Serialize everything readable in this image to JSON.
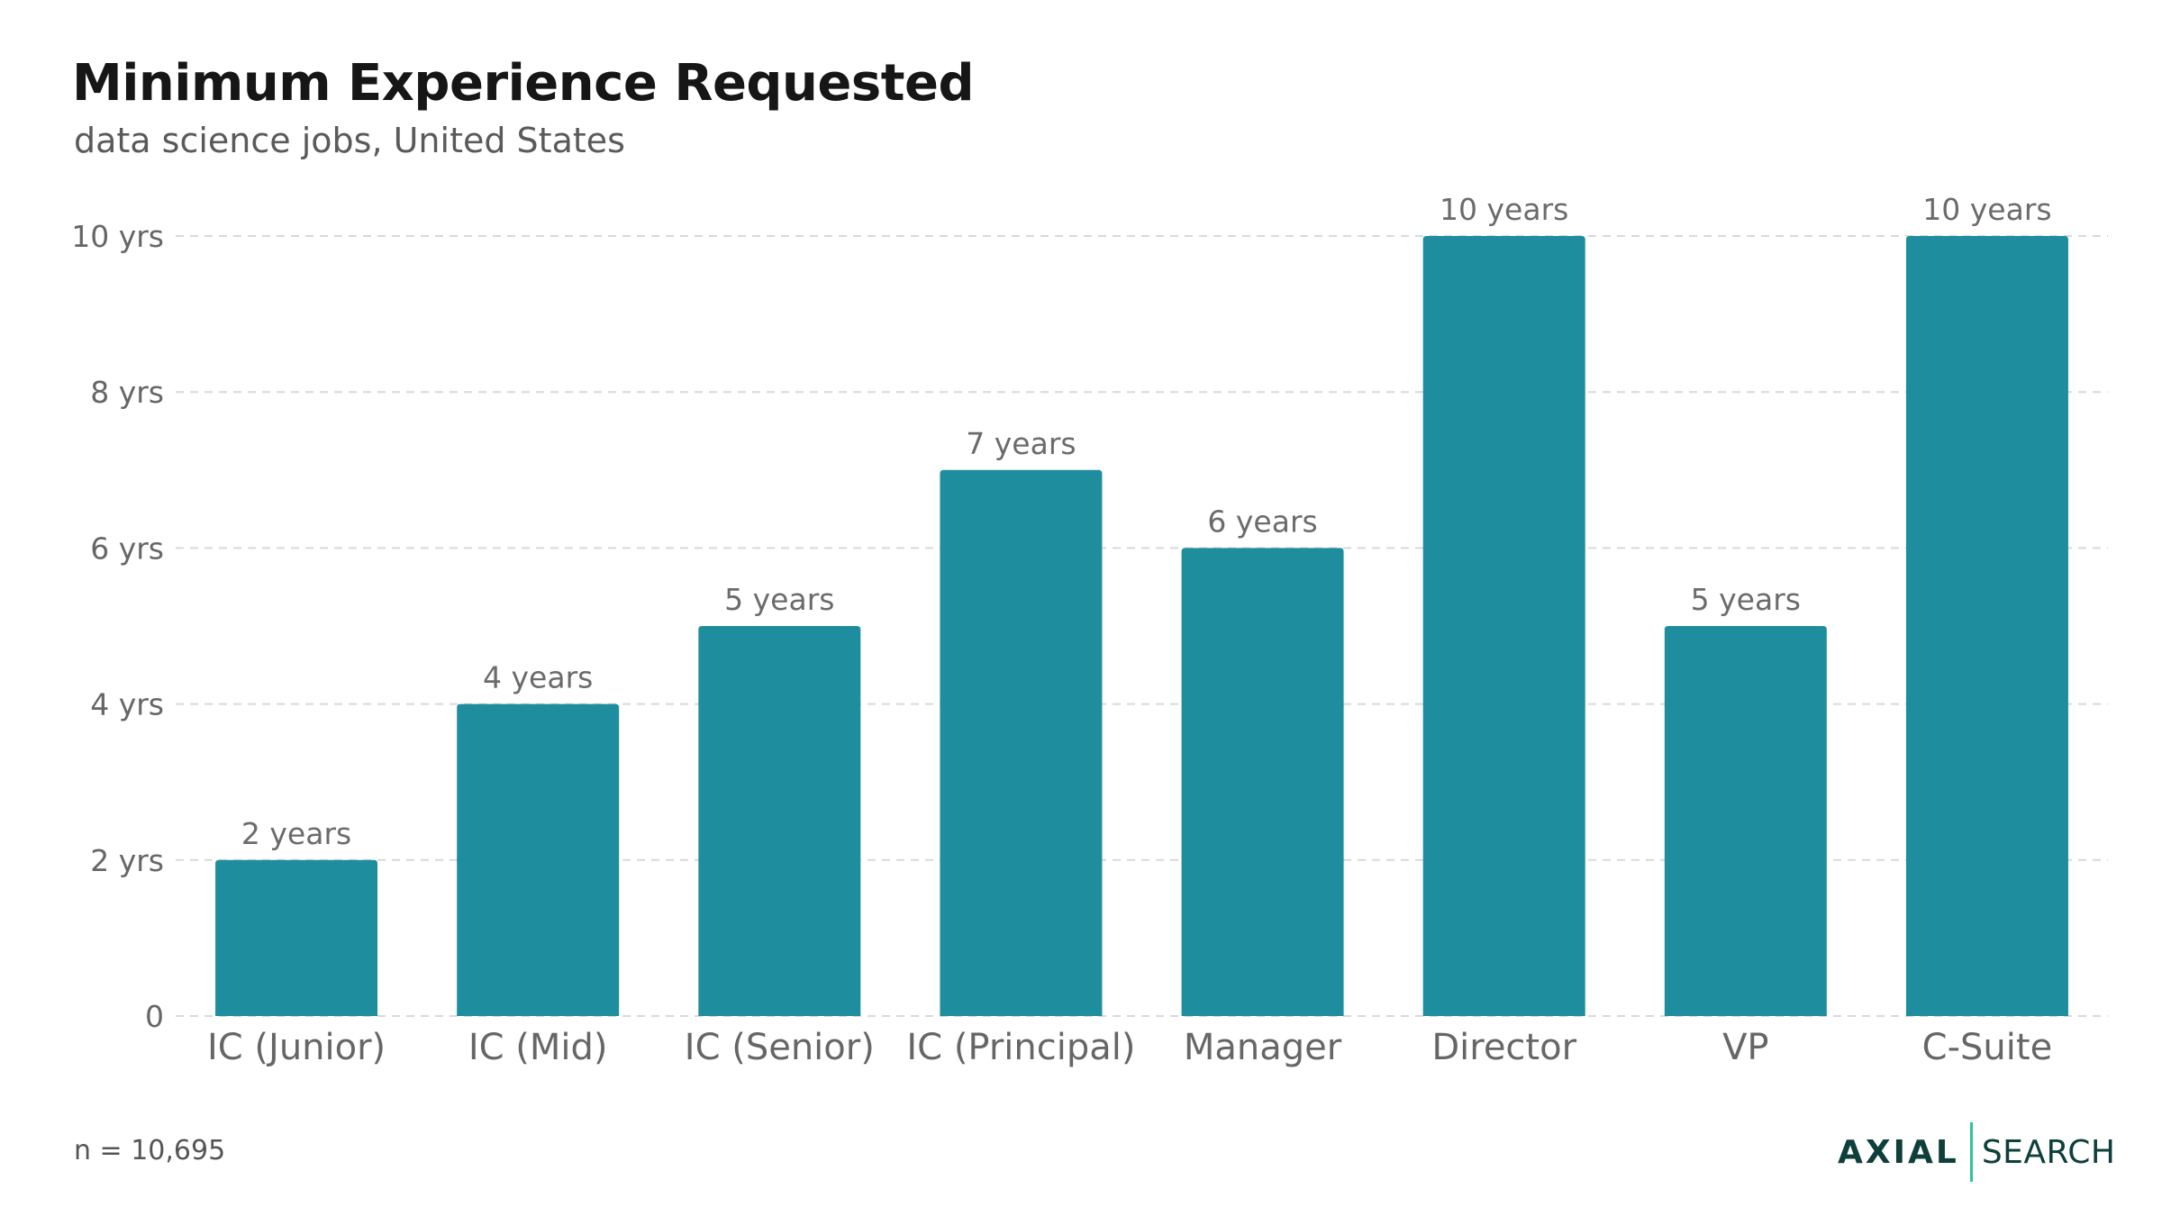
{
  "header": {
    "title": "Minimum Experience Requested",
    "subtitle": "data science jobs, United States"
  },
  "footer": {
    "note": "n = 10,695",
    "logo_primary": "AXIAL",
    "logo_secondary": "SEARCH"
  },
  "colors": {
    "bar": "#1e8e9f",
    "grid": "#d9d9d9",
    "axis_text": "#666666",
    "label_text": "#6b6b6b",
    "logo": "#0e3f3b",
    "logo_accent": "#2fc29f"
  },
  "chart_data": {
    "type": "bar",
    "title": "Minimum Experience Requested",
    "subtitle": "data science jobs, United States",
    "categories": [
      "IC (Junior)",
      "IC (Mid)",
      "IC (Senior)",
      "IC (Principal)",
      "Manager",
      "Director",
      "VP",
      "C-Suite"
    ],
    "values": [
      2,
      4,
      5,
      7,
      6,
      10,
      5,
      10
    ],
    "data_labels": [
      "2 years",
      "4 years",
      "5 years",
      "7 years",
      "6 years",
      "10 years",
      "5 years",
      "10 years"
    ],
    "ylim": [
      0,
      10
    ],
    "yticks": [
      0,
      2,
      4,
      6,
      8,
      10
    ],
    "ytick_labels": [
      "0",
      "2 yrs",
      "4 yrs",
      "6 yrs",
      "8 yrs",
      "10 yrs"
    ],
    "grid": true,
    "grid_style": "dashed",
    "legend": "none",
    "xlabel": "",
    "ylabel": ""
  }
}
